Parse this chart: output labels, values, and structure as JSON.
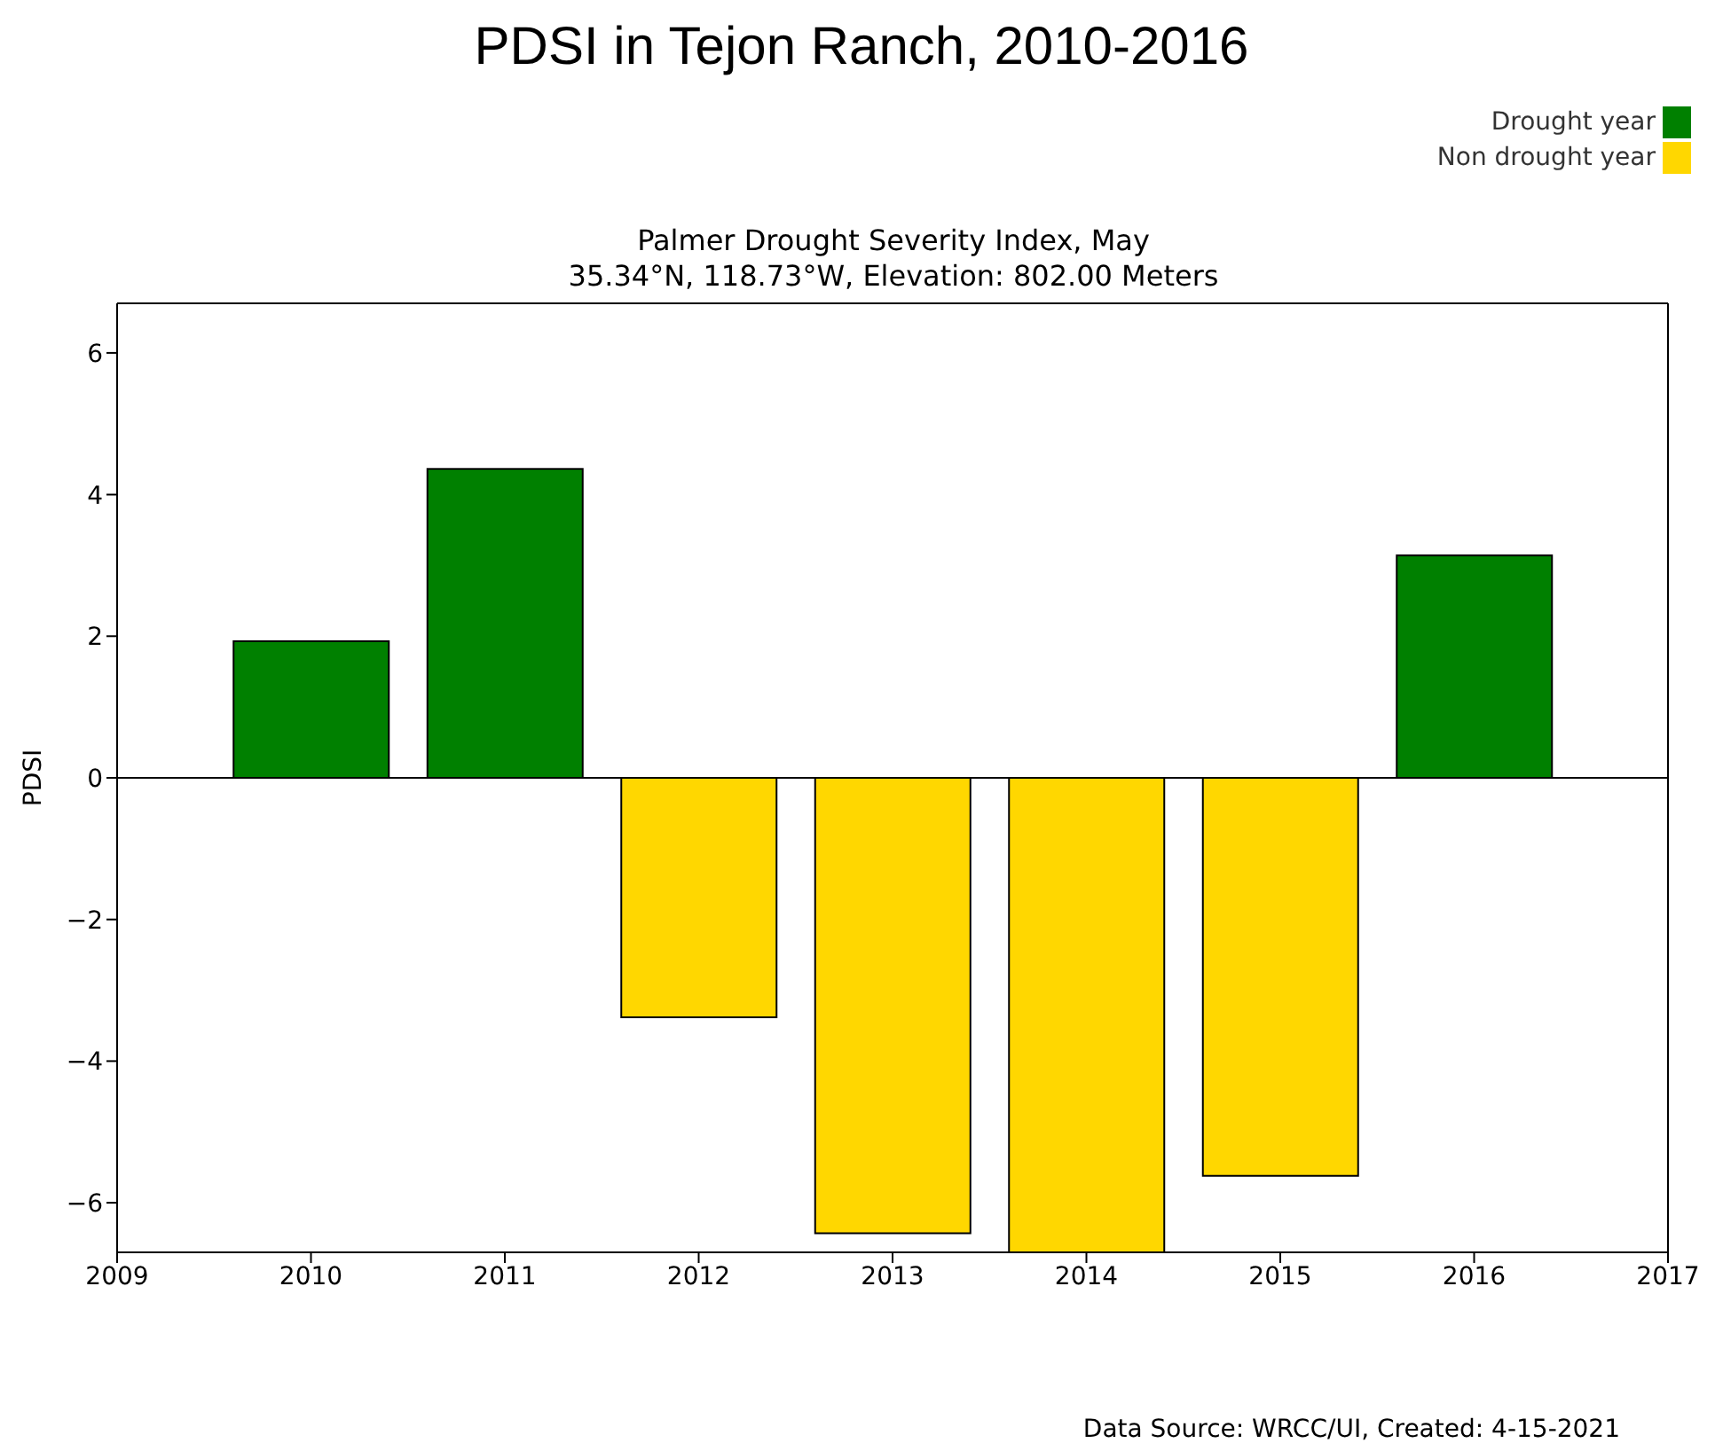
{
  "chart_data": {
    "type": "bar",
    "title": "PDSI in Tejon Ranch, 2010-2016",
    "subtitle": "Palmer Drought Severity Index, May\n35.34°N, 118.73°W, Elevation: 802.00 Meters",
    "ylabel": "PDSI",
    "x": [
      2010,
      2011,
      2012,
      2013,
      2014,
      2015,
      2016
    ],
    "series": [
      {
        "name": "Drought year",
        "color": "#008000",
        "values": [
          1.93,
          4.36,
          null,
          null,
          null,
          null,
          3.14
        ]
      },
      {
        "name": "Non drought year",
        "color": "#ffd700",
        "values": [
          null,
          null,
          -3.38,
          -6.43,
          -6.7,
          -5.62,
          null
        ]
      }
    ],
    "stacked": true,
    "xlim": [
      2009,
      2017
    ],
    "xticks": [
      2009,
      2010,
      2011,
      2012,
      2013,
      2014,
      2015,
      2016,
      2017
    ],
    "ylim": [
      -6.7,
      6.7
    ],
    "yticks": [
      -6,
      -4,
      -2,
      0,
      2,
      4,
      6
    ],
    "ref_lines": [
      {
        "axis": "y",
        "value": 0,
        "color": "#000000"
      }
    ],
    "grid": false,
    "legend": "top right",
    "annotations": [
      "Data Source: WRCC/UI, Created: 4-15-2021"
    ]
  }
}
